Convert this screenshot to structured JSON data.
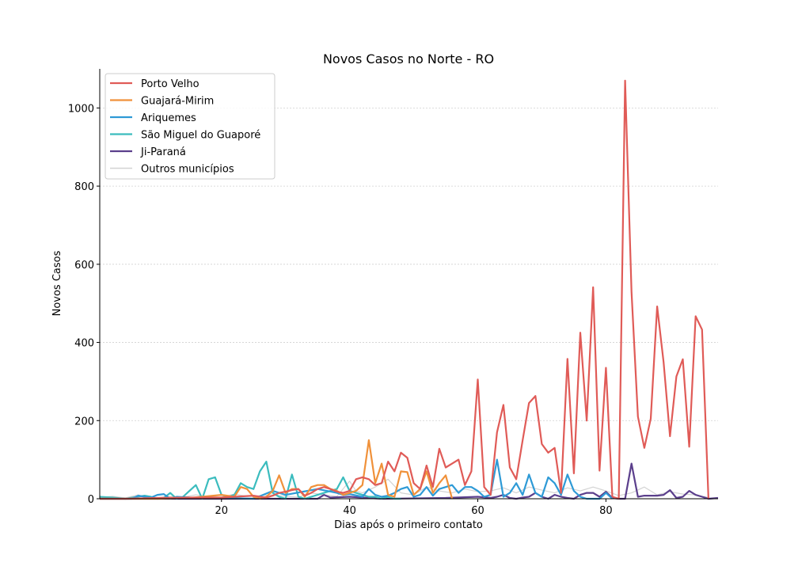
{
  "chart_data": {
    "type": "line",
    "title": "Novos Casos no Norte - RO",
    "xlabel": "Dias após o primeiro contato",
    "ylabel": "Novos Casos",
    "xlim": [
      1,
      97.5
    ],
    "ylim": [
      0,
      1100
    ],
    "xticks": [
      20,
      40,
      60,
      80
    ],
    "yticks": [
      0,
      200,
      400,
      600,
      800,
      1000
    ],
    "grid": "horizontal",
    "legend_position": "top-left",
    "colors": {
      "porto_velho": "#e05b57",
      "guajara_mirim": "#f0913a",
      "ariquemes": "#2e9ad6",
      "sao_miguel": "#3bbcbe",
      "ji_parana": "#5b3f8c",
      "outros": "#d3d3d3"
    },
    "series": [
      {
        "name": "Porto Velho",
        "color": "#e05b57",
        "x": [
          1,
          5,
          10,
          15,
          20,
          25,
          26,
          27,
          28,
          29,
          30,
          31,
          32,
          33,
          34,
          35,
          36,
          37,
          38,
          39,
          40,
          41,
          42,
          43,
          44,
          45,
          46,
          47,
          48,
          49,
          50,
          51,
          52,
          53,
          54,
          55,
          56,
          57,
          58,
          59,
          60,
          61,
          62,
          63,
          64,
          65,
          66,
          67,
          68,
          69,
          70,
          71,
          72,
          73,
          74,
          75,
          76,
          77,
          78,
          79,
          80,
          81,
          82,
          83,
          84,
          85,
          86,
          87,
          88,
          89,
          90,
          91,
          92,
          93,
          94,
          95,
          96
        ],
        "values": [
          0,
          0,
          2,
          3,
          3,
          8,
          5,
          3,
          8,
          15,
          18,
          22,
          25,
          8,
          15,
          25,
          30,
          25,
          18,
          15,
          20,
          50,
          55,
          50,
          35,
          40,
          95,
          70,
          118,
          105,
          40,
          25,
          85,
          30,
          128,
          80,
          90,
          100,
          35,
          70,
          305,
          30,
          10,
          170,
          240,
          80,
          50,
          150,
          245,
          263,
          140,
          118,
          130,
          15,
          358,
          65,
          425,
          200,
          541,
          72,
          335,
          5,
          0,
          1070,
          530,
          210,
          130,
          205,
          492,
          350,
          160,
          313,
          357,
          133,
          467,
          433,
          0
        ]
      },
      {
        "name": "Guajará-Mirim",
        "color": "#f0913a",
        "x": [
          1,
          5,
          10,
          15,
          20,
          22,
          23,
          24,
          25,
          26,
          27,
          28,
          29,
          30,
          31,
          32,
          33,
          34,
          35,
          36,
          37,
          38,
          39,
          40,
          41,
          42,
          43,
          44,
          45,
          46,
          47,
          48,
          49,
          50,
          51,
          52,
          53,
          54,
          55,
          56
        ],
        "values": [
          0,
          0,
          0,
          2,
          10,
          5,
          30,
          25,
          5,
          0,
          5,
          20,
          60,
          15,
          25,
          25,
          5,
          30,
          35,
          35,
          25,
          20,
          10,
          15,
          20,
          35,
          150,
          40,
          90,
          10,
          5,
          70,
          68,
          10,
          25,
          70,
          15,
          40,
          60,
          0
        ]
      },
      {
        "name": "Ariquemes",
        "color": "#2e9ad6",
        "x": [
          1,
          5,
          6,
          7,
          8,
          9,
          10,
          11,
          12,
          13,
          15,
          20,
          25,
          28,
          30,
          35,
          38,
          39,
          40,
          42,
          43,
          44,
          45,
          46,
          47,
          48,
          49,
          50,
          51,
          52,
          53,
          54,
          55,
          56,
          57,
          58,
          59,
          60,
          61,
          62,
          63,
          64,
          65,
          66,
          67,
          68,
          69,
          70,
          71,
          72,
          73,
          74,
          75,
          76,
          77,
          78,
          79,
          80,
          81
        ],
        "values": [
          0,
          0,
          0,
          8,
          5,
          3,
          10,
          12,
          0,
          5,
          3,
          2,
          0,
          20,
          10,
          25,
          15,
          10,
          12,
          5,
          25,
          10,
          5,
          8,
          15,
          25,
          30,
          5,
          10,
          30,
          8,
          25,
          30,
          35,
          15,
          30,
          30,
          20,
          5,
          10,
          100,
          5,
          15,
          40,
          10,
          62,
          15,
          5,
          55,
          40,
          10,
          62,
          20,
          5,
          0,
          0,
          0,
          15,
          0
        ]
      },
      {
        "name": "São Miguel do Guaporé",
        "color": "#3bbcbe",
        "x": [
          1,
          3,
          5,
          8,
          9,
          10,
          11,
          12,
          13,
          14,
          15,
          16,
          17,
          18,
          19,
          20,
          21,
          22,
          23,
          24,
          25,
          26,
          27,
          28,
          29,
          30,
          31,
          32,
          33,
          34,
          35,
          36,
          37,
          38,
          39,
          40,
          41,
          42,
          43,
          44,
          45,
          46,
          47,
          48
        ],
        "values": [
          5,
          3,
          0,
          8,
          5,
          0,
          2,
          15,
          0,
          5,
          20,
          35,
          0,
          50,
          55,
          10,
          5,
          10,
          40,
          30,
          25,
          70,
          95,
          15,
          5,
          0,
          62,
          5,
          0,
          5,
          10,
          15,
          20,
          25,
          55,
          20,
          15,
          10,
          5,
          5,
          0,
          5,
          0,
          0
        ]
      },
      {
        "name": "Ji-Paraná",
        "color": "#5b3f8c",
        "x": [
          1,
          30,
          35,
          36,
          37,
          40,
          45,
          55,
          60,
          62,
          63,
          64,
          65,
          66,
          67,
          68,
          69,
          70,
          71,
          72,
          73,
          74,
          75,
          76,
          77,
          78,
          79,
          80,
          81,
          82,
          83,
          84,
          85,
          86,
          87,
          88,
          89,
          90,
          91,
          92,
          93,
          94,
          95,
          96,
          97.5
        ],
        "values": [
          0,
          0,
          0,
          10,
          3,
          5,
          0,
          2,
          5,
          2,
          5,
          10,
          2,
          0,
          3,
          5,
          15,
          5,
          0,
          10,
          5,
          2,
          0,
          10,
          15,
          15,
          5,
          18,
          2,
          0,
          0,
          90,
          5,
          8,
          8,
          8,
          10,
          22,
          2,
          5,
          20,
          10,
          5,
          0,
          2
        ]
      },
      {
        "name": "Outros municípios",
        "color": "#d3d3d3",
        "x": [
          1,
          3,
          5,
          7,
          8,
          10,
          12,
          14,
          16,
          18,
          20,
          22,
          24,
          26,
          28,
          30,
          32,
          34,
          36,
          38,
          40,
          41,
          42,
          44,
          46,
          48,
          50,
          52,
          54,
          56,
          58,
          60,
          62,
          64,
          66,
          68,
          70,
          72,
          74,
          76,
          78,
          80,
          82,
          84,
          86,
          88,
          90,
          92,
          94,
          96
        ],
        "values": [
          3,
          6,
          2,
          10,
          4,
          3,
          6,
          4,
          10,
          5,
          4,
          12,
          6,
          8,
          10,
          6,
          4,
          15,
          10,
          6,
          45,
          20,
          15,
          30,
          50,
          15,
          10,
          30,
          20,
          15,
          25,
          18,
          20,
          28,
          15,
          30,
          22,
          15,
          28,
          20,
          30,
          20,
          8,
          15,
          30,
          10,
          18,
          12,
          10,
          3
        ]
      }
    ]
  }
}
